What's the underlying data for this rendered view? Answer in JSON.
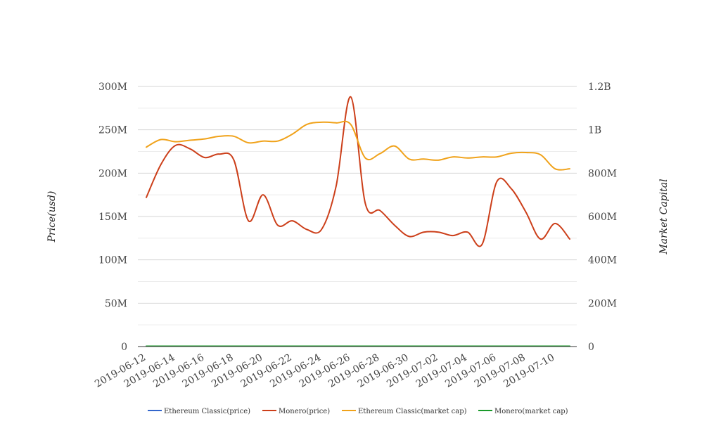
{
  "chart_data": {
    "type": "line",
    "x": [
      "2019-06-12",
      "2019-06-13",
      "2019-06-14",
      "2019-06-15",
      "2019-06-16",
      "2019-06-17",
      "2019-06-18",
      "2019-06-19",
      "2019-06-20",
      "2019-06-21",
      "2019-06-22",
      "2019-06-23",
      "2019-06-24",
      "2019-06-25",
      "2019-06-26",
      "2019-06-27",
      "2019-06-28",
      "2019-06-29",
      "2019-06-30",
      "2019-07-01",
      "2019-07-02",
      "2019-07-03",
      "2019-07-04",
      "2019-07-05",
      "2019-07-06",
      "2019-07-07",
      "2019-07-08",
      "2019-07-09",
      "2019-07-10",
      "2019-07-11"
    ],
    "x_tick_labels": [
      "2019-06-12",
      "2019-06-14",
      "2019-06-16",
      "2019-06-18",
      "2019-06-20",
      "2019-06-22",
      "2019-06-24",
      "2019-06-26",
      "2019-06-28",
      "2019-06-30",
      "2019-07-02",
      "2019-07-04",
      "2019-07-06",
      "2019-07-08",
      "2019-07-10"
    ],
    "ylabel_left": "Price(usd)",
    "ylabel_right": "Market Capital",
    "ylim_left": [
      0,
      300000000
    ],
    "ylim_right": [
      0,
      1200000000
    ],
    "y_ticks_left": [
      "0",
      "50M",
      "100M",
      "150M",
      "200M",
      "250M",
      "300M"
    ],
    "y_ticks_right": [
      "0",
      "200M",
      "400M",
      "600M",
      "800M",
      "1B",
      "1.2B"
    ],
    "grid": true,
    "legend_position": "bottom",
    "series": [
      {
        "name": "Ethereum Classic(price)",
        "axis": "left",
        "color": "#3366cc",
        "values": [
          6,
          6,
          6,
          6,
          6,
          6,
          6,
          6,
          6,
          6,
          6,
          6,
          6,
          6,
          6,
          6,
          6,
          6,
          6,
          6,
          6,
          6,
          6,
          6,
          6,
          6,
          6,
          6,
          6,
          6
        ]
      },
      {
        "name": "Monero(price)",
        "axis": "left",
        "color": "#cc3f1a",
        "values": [
          172000000,
          210000000,
          232000000,
          228000000,
          218000000,
          222000000,
          215000000,
          145000000,
          175000000,
          140000000,
          145000000,
          135000000,
          135000000,
          185000000,
          288000000,
          165000000,
          157000000,
          140000000,
          127000000,
          132000000,
          132000000,
          128000000,
          132000000,
          118000000,
          190000000,
          182000000,
          155000000,
          124000000,
          142000000,
          124000000
        ]
      },
      {
        "name": "Ethereum Classic(market cap)",
        "axis": "right",
        "color": "#f0a21a",
        "values": [
          920000000,
          955000000,
          945000000,
          952000000,
          958000000,
          970000000,
          970000000,
          940000000,
          948000000,
          948000000,
          980000000,
          1025000000,
          1035000000,
          1032000000,
          1025000000,
          870000000,
          890000000,
          925000000,
          865000000,
          865000000,
          860000000,
          875000000,
          870000000,
          875000000,
          875000000,
          892000000,
          895000000,
          885000000,
          820000000,
          820000000
        ]
      },
      {
        "name": "Monero(market cap)",
        "axis": "right",
        "color": "#1a9a2a",
        "values": [
          1000000,
          1000000,
          1000000,
          1000000,
          1000000,
          1000000,
          1000000,
          1000000,
          1000000,
          1000000,
          1000000,
          1000000,
          1000000,
          1000000,
          1000000,
          1000000,
          1000000,
          1000000,
          1000000,
          1000000,
          1000000,
          1000000,
          1000000,
          1000000,
          1000000,
          1000000,
          1000000,
          1000000,
          1000000,
          1000000
        ]
      }
    ]
  }
}
